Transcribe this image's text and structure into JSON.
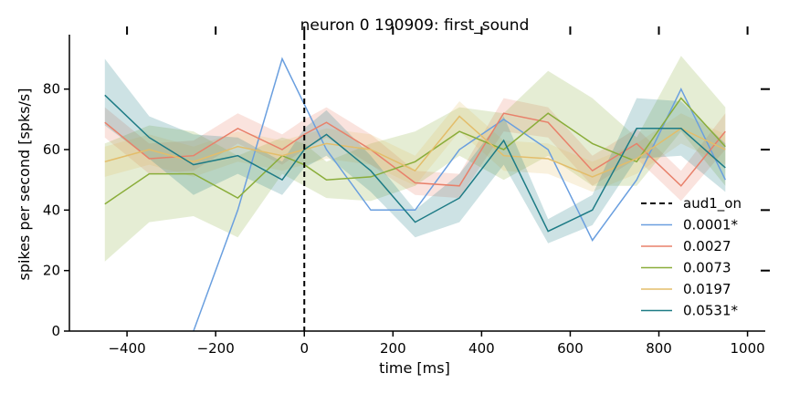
{
  "chart_data": {
    "type": "line",
    "title": "neuron 0 190909: first_sound",
    "xlabel": "time [ms]",
    "ylabel": "spikes per second [spks/s]",
    "xlim": [
      -530,
      1040
    ],
    "ylim": [
      0,
      98
    ],
    "xticks": [
      -400,
      -200,
      0,
      200,
      400,
      600,
      800,
      1000
    ],
    "xtick_labels": [
      "−400",
      "−200",
      "0",
      "200",
      "400",
      "600",
      "800",
      "1000"
    ],
    "yticks": [
      0,
      20,
      40,
      60,
      80
    ],
    "ytick_labels": [
      "0",
      "20",
      "40",
      "60",
      "80"
    ],
    "top_ticks": [
      -400,
      -200,
      0,
      200,
      400,
      600,
      800,
      1000
    ],
    "right_ticks": [
      20,
      40,
      60,
      80
    ],
    "grid": false,
    "legend_position": "lower-right",
    "vline": {
      "label": "aud1_on",
      "x": 0,
      "color": "#000000"
    },
    "x": [
      -450,
      -350,
      -250,
      -150,
      -50,
      0,
      50,
      150,
      250,
      350,
      450,
      550,
      650,
      750,
      850,
      950
    ],
    "series": [
      {
        "name": "0.0001*",
        "color": "#6a9fdf",
        "values": [
          null,
          null,
          0,
          40,
          90,
          75,
          60,
          40,
          40,
          60,
          70,
          60,
          30,
          50,
          80,
          50
        ]
      },
      {
        "name": "0.0027",
        "color": "#e8806a",
        "values": [
          69,
          57,
          58,
          67,
          60,
          65,
          69,
          60,
          49,
          48,
          72,
          69,
          53,
          62,
          48,
          66
        ],
        "lower": [
          64,
          52,
          53,
          62,
          55,
          60,
          64,
          55,
          45,
          44,
          66,
          64,
          48,
          57,
          43,
          60
        ],
        "upper": [
          74,
          62,
          63,
          72,
          65,
          70,
          74,
          65,
          53,
          52,
          77,
          74,
          58,
          67,
          53,
          72
        ]
      },
      {
        "name": "0.0073",
        "color": "#8aad3a",
        "values": [
          42,
          52,
          52,
          44,
          58,
          55,
          50,
          51,
          56,
          66,
          60,
          72,
          62,
          56,
          77,
          61
        ],
        "lower": [
          23,
          36,
          38,
          31,
          52,
          48,
          44,
          43,
          48,
          58,
          50,
          58,
          48,
          48,
          66,
          48
        ],
        "upper": [
          62,
          68,
          66,
          58,
          64,
          62,
          56,
          62,
          66,
          74,
          72,
          86,
          77,
          64,
          91,
          74
        ]
      },
      {
        "name": "0.0197",
        "color": "#e3bd6a",
        "values": [
          56,
          60,
          56,
          61,
          58,
          60,
          62,
          60,
          53,
          71,
          58,
          57,
          51,
          57,
          67,
          60
        ],
        "lower": [
          51,
          55,
          51,
          56,
          53,
          55,
          57,
          55,
          48,
          66,
          53,
          52,
          46,
          52,
          62,
          55
        ],
        "upper": [
          61,
          65,
          61,
          66,
          63,
          65,
          67,
          65,
          58,
          76,
          63,
          62,
          56,
          62,
          72,
          65
        ]
      },
      {
        "name": "0.0531*",
        "color": "#1d7b85",
        "values": [
          78,
          64,
          55,
          58,
          50,
          60,
          65,
          53,
          36,
          44,
          63,
          33,
          40,
          67,
          67,
          54
        ],
        "lower": [
          68,
          57,
          45,
          52,
          45,
          54,
          58,
          46,
          31,
          36,
          55,
          29,
          35,
          57,
          58,
          46
        ],
        "upper": [
          90,
          71,
          65,
          64,
          56,
          67,
          73,
          58,
          40,
          52,
          71,
          37,
          45,
          77,
          76,
          62
        ]
      }
    ]
  }
}
